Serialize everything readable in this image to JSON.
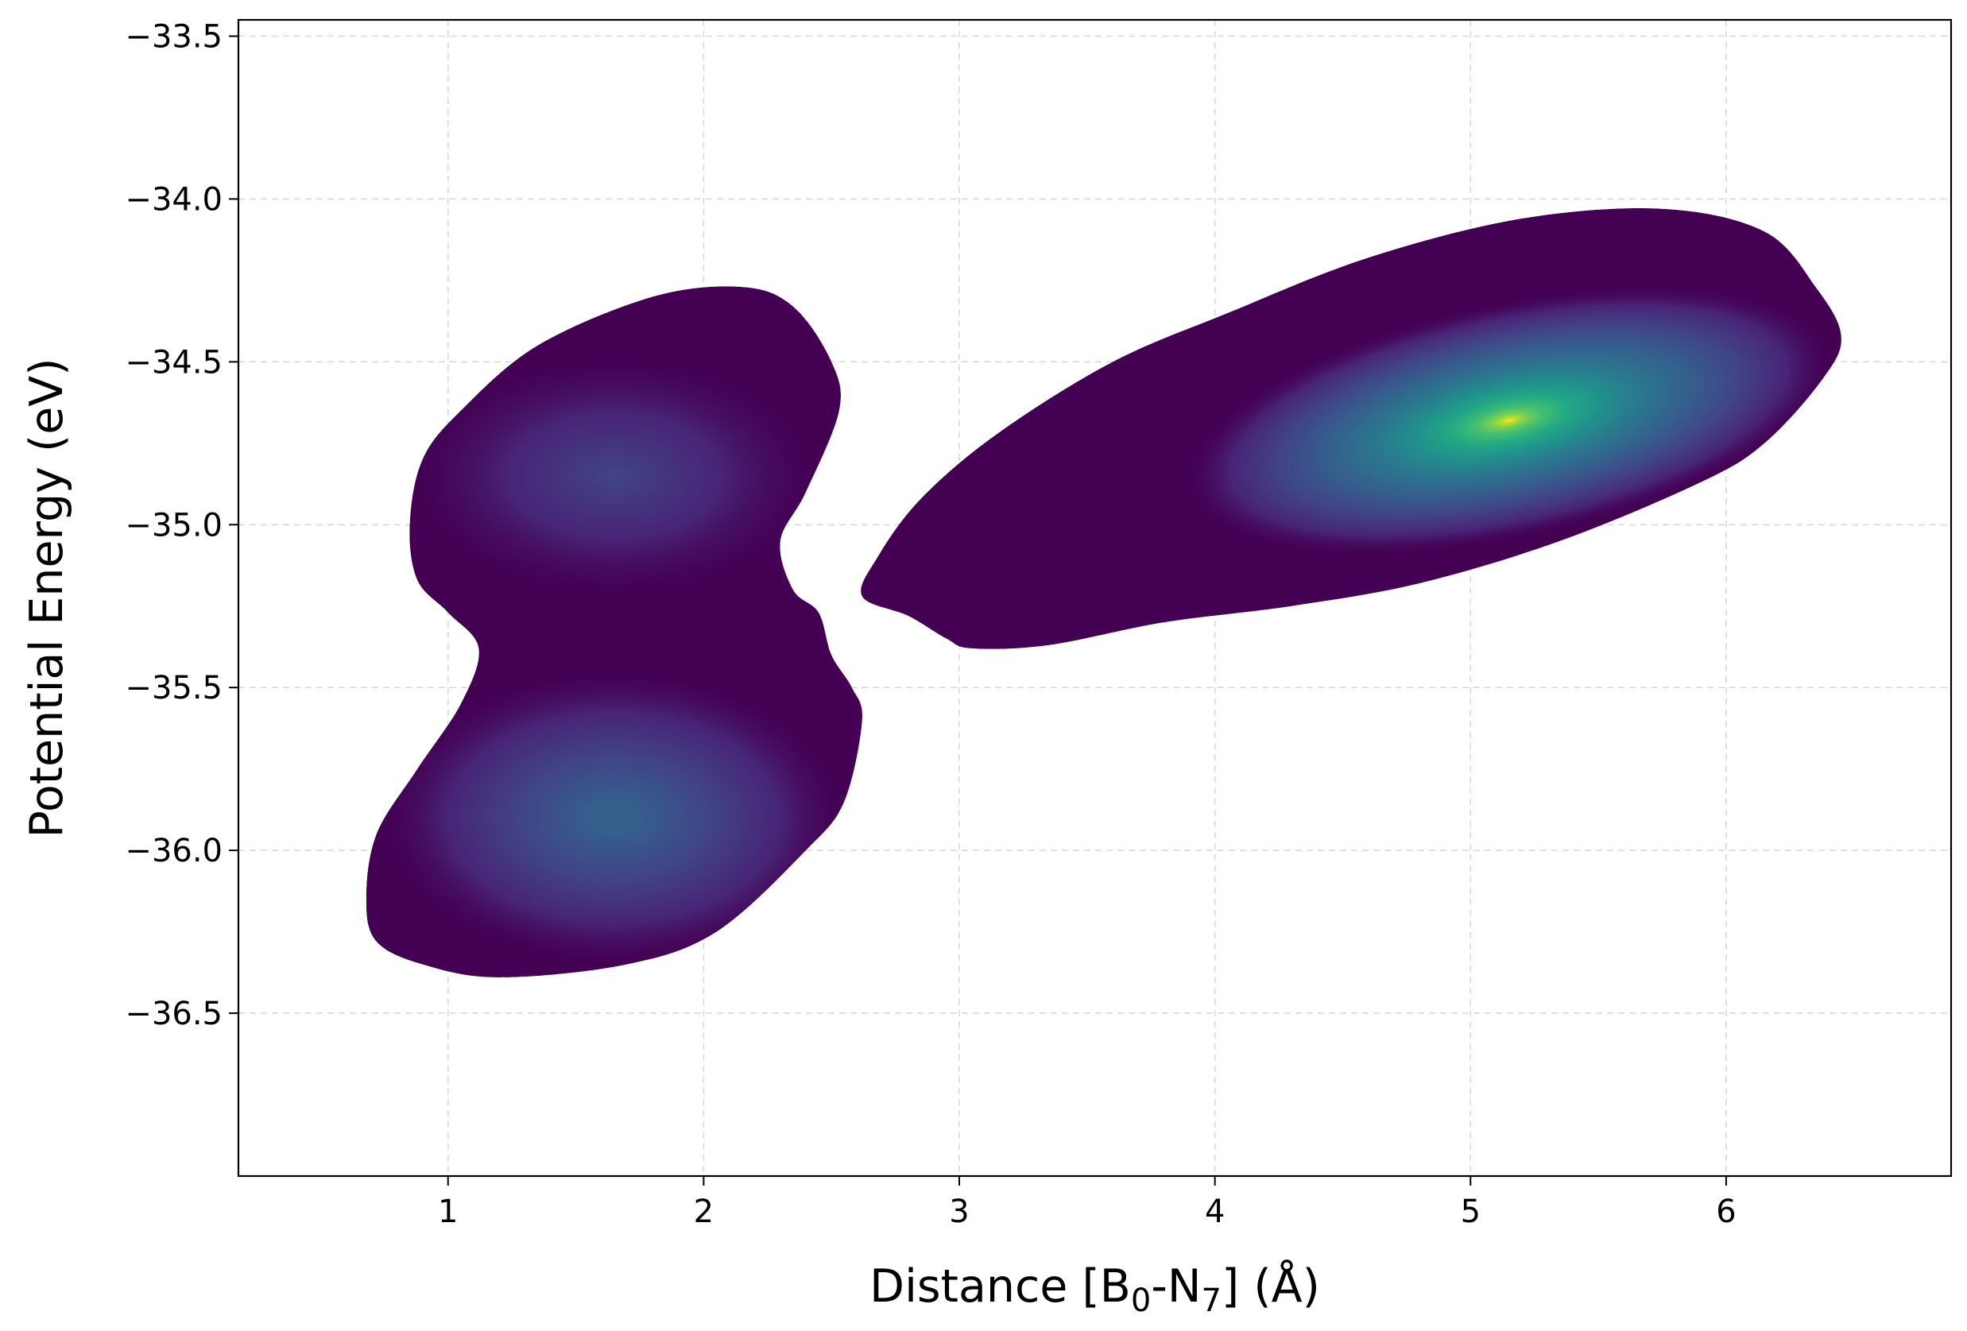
{
  "chart_data": {
    "type": "heatmap",
    "subtype": "2d-kde-density",
    "title": "",
    "xlabel": {
      "main": "Distance [B",
      "sub1": "0",
      "mid": "-N",
      "sub2": "7",
      "end": "] (Å)"
    },
    "ylabel": "Potential Energy (eV)",
    "xlim": [
      0.18,
      6.88
    ],
    "ylim": [
      -37.0,
      -33.45
    ],
    "grid": true,
    "colormap": "viridis",
    "x_ticks": [
      1,
      2,
      3,
      4,
      5,
      6
    ],
    "x_tick_labels": [
      "1",
      "2",
      "3",
      "4",
      "5",
      "6"
    ],
    "y_ticks": [
      -33.5,
      -34.0,
      -34.5,
      -35.0,
      -35.5,
      -36.0,
      -36.5
    ],
    "y_tick_labels": [
      "−33.5",
      "−34.0",
      "−34.5",
      "−35.0",
      "−35.5",
      "−36.0",
      "−36.5"
    ],
    "density_peaks": [
      {
        "x": 5.15,
        "y": -34.68,
        "relative_density": 1.0
      },
      {
        "x": 1.65,
        "y": -35.9,
        "relative_density": 0.5
      },
      {
        "x": 1.65,
        "y": -34.85,
        "relative_density": 0.3
      }
    ],
    "regions": [
      {
        "name": "left-cluster",
        "outline": [
          [
            0.68,
            -36.15
          ],
          [
            0.72,
            -35.95
          ],
          [
            0.88,
            -35.75
          ],
          [
            1.05,
            -35.55
          ],
          [
            1.12,
            -35.38
          ],
          [
            1.0,
            -35.27
          ],
          [
            0.88,
            -35.17
          ],
          [
            0.85,
            -35.0
          ],
          [
            0.9,
            -34.8
          ],
          [
            1.05,
            -34.65
          ],
          [
            1.35,
            -34.45
          ],
          [
            1.8,
            -34.3
          ],
          [
            2.15,
            -34.27
          ],
          [
            2.35,
            -34.33
          ],
          [
            2.5,
            -34.5
          ],
          [
            2.53,
            -34.65
          ],
          [
            2.4,
            -34.9
          ],
          [
            2.3,
            -35.05
          ],
          [
            2.35,
            -35.2
          ],
          [
            2.45,
            -35.27
          ],
          [
            2.5,
            -35.4
          ],
          [
            2.58,
            -35.5
          ],
          [
            2.62,
            -35.6
          ],
          [
            2.55,
            -35.85
          ],
          [
            2.4,
            -36.0
          ],
          [
            2.05,
            -36.25
          ],
          [
            1.7,
            -36.35
          ],
          [
            1.2,
            -36.39
          ],
          [
            0.9,
            -36.35
          ],
          [
            0.72,
            -36.28
          ]
        ]
      },
      {
        "name": "right-cluster",
        "outline": [
          [
            2.62,
            -35.22
          ],
          [
            2.68,
            -35.1
          ],
          [
            2.85,
            -34.92
          ],
          [
            3.15,
            -34.72
          ],
          [
            3.6,
            -34.5
          ],
          [
            4.05,
            -34.35
          ],
          [
            4.6,
            -34.18
          ],
          [
            5.2,
            -34.06
          ],
          [
            5.75,
            -34.03
          ],
          [
            6.15,
            -34.1
          ],
          [
            6.35,
            -34.27
          ],
          [
            6.45,
            -34.42
          ],
          [
            6.38,
            -34.55
          ],
          [
            6.15,
            -34.75
          ],
          [
            5.9,
            -34.87
          ],
          [
            5.35,
            -35.05
          ],
          [
            4.8,
            -35.18
          ],
          [
            4.3,
            -35.25
          ],
          [
            3.8,
            -35.3
          ],
          [
            3.35,
            -35.37
          ],
          [
            3.05,
            -35.38
          ],
          [
            2.95,
            -35.35
          ],
          [
            2.8,
            -35.28
          ]
        ]
      }
    ]
  }
}
